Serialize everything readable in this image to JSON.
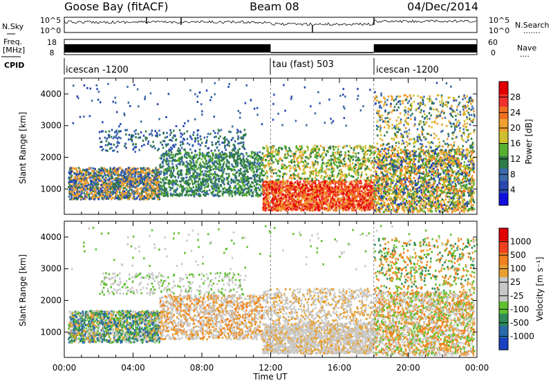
{
  "header": {
    "station": "Goose Bay (fitACF)",
    "beam": "Beam 08",
    "date": "04/Dec/2014"
  },
  "noise_panel": {
    "left_label": "N.Sky",
    "right_label": "N.Search",
    "ticks": [
      "10^5",
      "10^0"
    ],
    "dotted": "......."
  },
  "freq_panel": {
    "left_label_top": "Freq.",
    "left_label_bottom": "[MHz]",
    "left_ticks": [
      "18",
      "8"
    ],
    "right_label": "Nave",
    "right_ticks": [
      "60",
      "0"
    ],
    "dotted": "...."
  },
  "cpid_panel": {
    "label": "CPID",
    "segments": [
      {
        "start_hour": 0,
        "label": "icescan -1200"
      },
      {
        "start_hour": 12,
        "label": "tau (fast) 503"
      },
      {
        "start_hour": 18,
        "label": "icescan -1200"
      }
    ]
  },
  "chart_data": [
    {
      "type": "heatmap",
      "quantity": "Power",
      "ylabel": "Slant Range [km]",
      "ylim": [
        200,
        4500
      ],
      "y_ticks": [
        1000,
        2000,
        3000,
        4000
      ],
      "xlim": [
        0,
        24
      ],
      "colorbar": {
        "label": "Power [dB]",
        "ticks": [
          "4",
          "8",
          "12",
          "16",
          "20",
          "24",
          "28"
        ],
        "colors": [
          "#1010e0",
          "#2848b0",
          "#3a6aa8",
          "#2f7a48",
          "#58b030",
          "#cfc030",
          "#f0a030",
          "#f07020",
          "#f03030",
          "#e00000"
        ]
      }
    },
    {
      "type": "heatmap",
      "quantity": "Velocity",
      "ylabel": "Slant Range [km]",
      "ylim": [
        200,
        4500
      ],
      "y_ticks": [
        1000,
        2000,
        3000,
        4000
      ],
      "xlim": [
        0,
        24
      ],
      "colorbar": {
        "label": "Velocity [m s⁻¹]",
        "ticks": [
          "1000",
          "500",
          "100",
          "25",
          "-25",
          "-100",
          "-500",
          "-1000"
        ],
        "colors": [
          "#1840c0",
          "#2a6aa8",
          "#2f8a58",
          "#60c030",
          "#c8c8c8",
          "#c8c8c8",
          "#e8a030",
          "#f08020",
          "#f04020",
          "#e00000"
        ]
      }
    }
  ],
  "x_axis": {
    "label": "Time UT",
    "ticks": [
      "00:00",
      "04:00",
      "08:00",
      "12:00",
      "16:00",
      "20:00",
      "00:00"
    ]
  }
}
